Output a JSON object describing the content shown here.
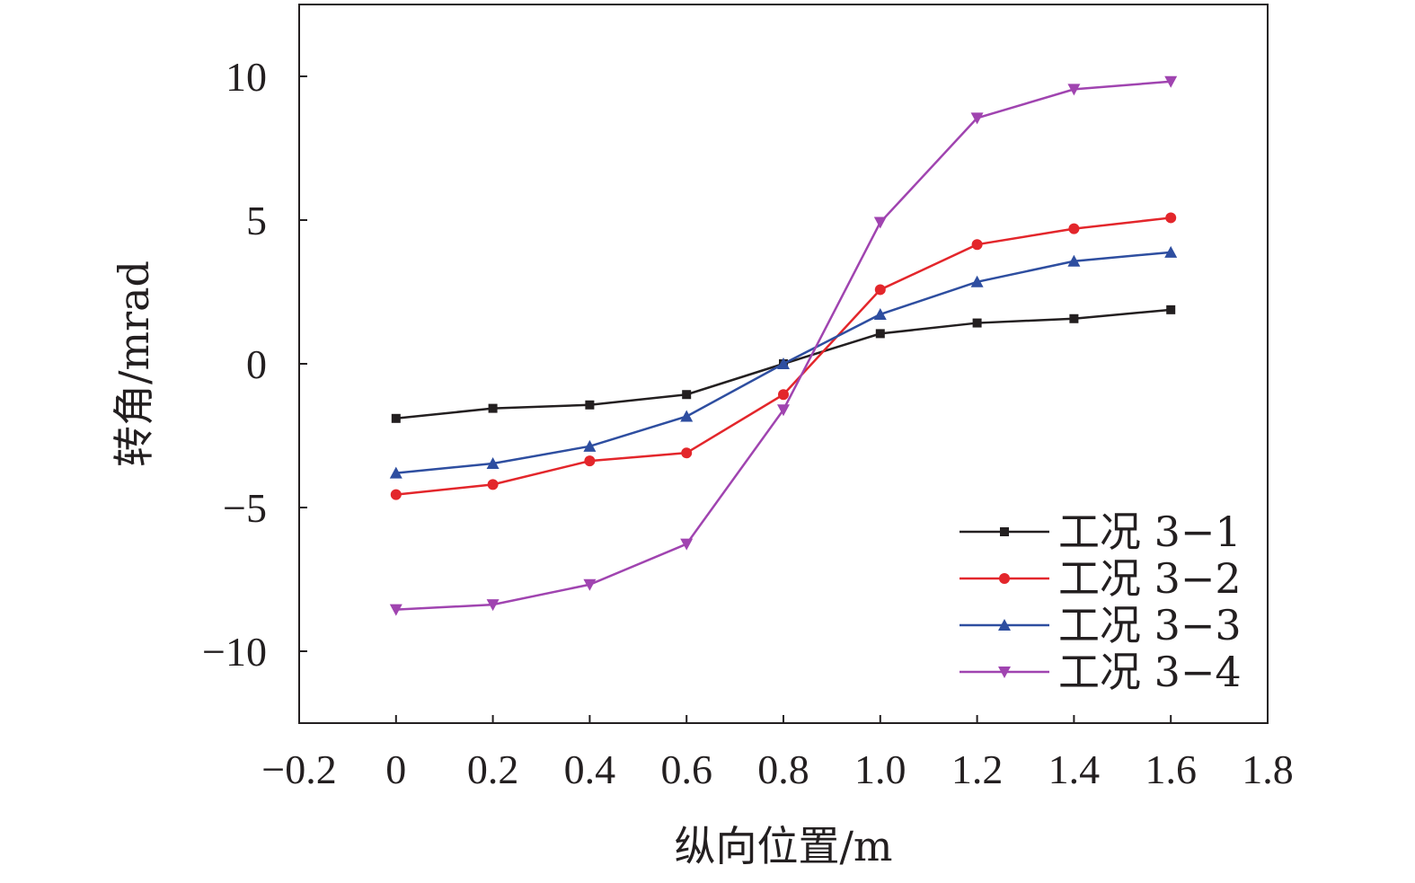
{
  "chart_data": {
    "type": "line",
    "xlabel": "纵向位置/m",
    "ylabel": "转角/mrad",
    "xlim": [
      -0.2,
      1.8
    ],
    "ylim": [
      -12.5,
      12.5
    ],
    "xticks": [
      -0.2,
      0,
      0.2,
      0.4,
      0.6,
      0.8,
      1.0,
      1.2,
      1.4,
      1.6,
      1.8
    ],
    "xtick_labels": [
      "−0.2",
      "0",
      "0.2",
      "0.4",
      "0.6",
      "0.8",
      "1.0",
      "1.2",
      "1.4",
      "1.6",
      "1.8"
    ],
    "yticks": [
      -10,
      -5,
      0,
      5,
      10
    ],
    "ytick_labels": [
      "−10",
      "−5",
      "0",
      "5",
      "10"
    ],
    "legend_position": "bottom-right",
    "grid": false,
    "x": [
      0,
      0.2,
      0.4,
      0.6,
      0.8,
      1.0,
      1.2,
      1.4,
      1.6
    ],
    "series": [
      {
        "name": "工况 3−1",
        "color": "#231f20",
        "marker": "square",
        "values": [
          -1.9,
          -1.55,
          -1.43,
          -1.07,
          0.0,
          1.05,
          1.42,
          1.57,
          1.88
        ]
      },
      {
        "name": "工况 3−2",
        "color": "#e3262b",
        "marker": "circle",
        "values": [
          -4.55,
          -4.2,
          -3.38,
          -3.1,
          -1.07,
          2.58,
          4.15,
          4.7,
          5.08
        ]
      },
      {
        "name": "工况 3−3",
        "color": "#2e4ea0",
        "marker": "triangle-up",
        "values": [
          -3.8,
          -3.47,
          -2.87,
          -1.83,
          0.0,
          1.72,
          2.85,
          3.57,
          3.88
        ]
      },
      {
        "name": "工况 3−4",
        "color": "#a044b0",
        "marker": "triangle-down",
        "values": [
          -8.55,
          -8.38,
          -7.68,
          -6.27,
          -1.6,
          4.92,
          8.55,
          9.55,
          9.82
        ]
      }
    ]
  }
}
